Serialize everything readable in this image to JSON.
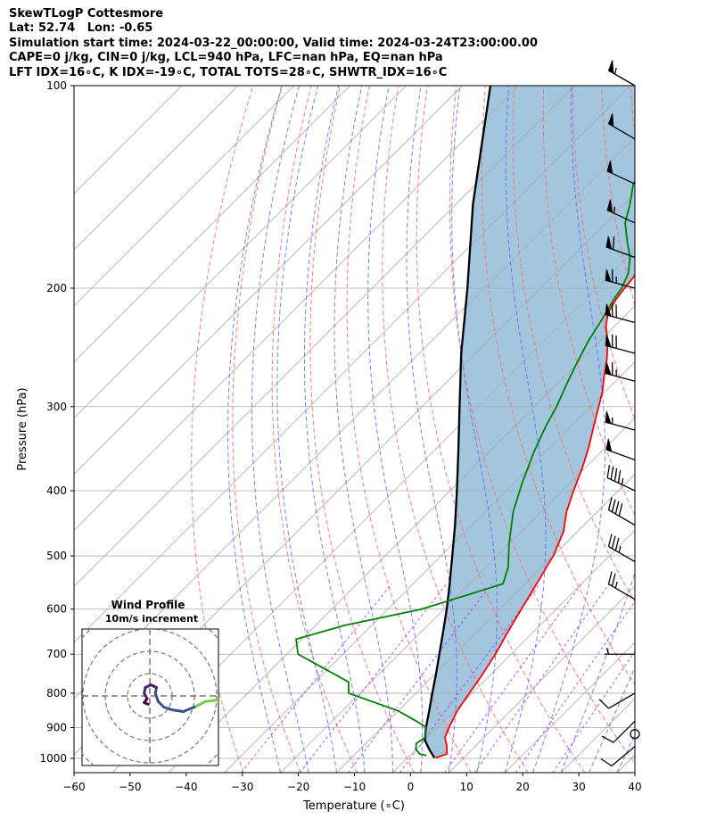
{
  "title_lines": [
    "SkewTLogP Cottesmore",
    "Lat: 52.74   Lon: -0.65",
    "Simulation start time: 2024-03-22_00:00:00, Valid time: 2024-03-24T23:00:00.00",
    "CAPE=0 j/kg, CIN=0 j/kg, LCL=940 hPa, LFC=nan hPa, EQ=nan hPa",
    "LFT IDX=16∘C, K IDX=-19∘C, TOTAL TOTS=28∘C, SHWTR_IDX=16∘C"
  ],
  "hodograph": {
    "title": "Wind Profile",
    "subtitle": "10m/s increment"
  },
  "chart_data": {
    "type": "skew-t log-p",
    "xlabel": "Temperature (∘C)",
    "ylabel": "Pressure (hPa)",
    "xlim": [
      -60,
      40
    ],
    "ylim": [
      1050,
      100
    ],
    "x_ticks": [
      "−60",
      "−50",
      "−40",
      "−30",
      "−20",
      "−10",
      "0",
      "10",
      "20",
      "30",
      "40"
    ],
    "y_ticks": [
      "100",
      "200",
      "300",
      "400",
      "500",
      "600",
      "700",
      "800",
      "900",
      "1000"
    ],
    "grid": true,
    "colors": {
      "temperature": "#ff0000",
      "dewpoint": "#008000",
      "parcel": "#000000",
      "cape_fill": "#a3c6df",
      "dry_adiabat": "#ff6b6b",
      "moist_adiabat": "#5a6bff",
      "mixing_ratio": "#9b30ff",
      "isotherm": "#aaaaaa"
    },
    "series": [
      {
        "key": "temperature",
        "points": [
          [
            998,
            5.0
          ],
          [
            985,
            6.3
          ],
          [
            960,
            5.0
          ],
          [
            930,
            3.0
          ],
          [
            900,
            2.0
          ],
          [
            850,
            0.5
          ],
          [
            800,
            -0.5
          ],
          [
            750,
            -1.5
          ],
          [
            700,
            -2.8
          ],
          [
            650,
            -4.5
          ],
          [
            600,
            -6.2
          ],
          [
            550,
            -8.0
          ],
          [
            500,
            -10.0
          ],
          [
            460,
            -12.5
          ],
          [
            430,
            -15.5
          ],
          [
            400,
            -18.0
          ],
          [
            370,
            -20.5
          ],
          [
            345,
            -23.0
          ],
          [
            320,
            -26.0
          ],
          [
            300,
            -28.5
          ],
          [
            285,
            -30.5
          ],
          [
            270,
            -33.0
          ],
          [
            255,
            -35.5
          ],
          [
            240,
            -38.5
          ],
          [
            228,
            -41.5
          ],
          [
            218,
            -43.5
          ],
          [
            208,
            -44.5
          ],
          [
            200,
            -45.0
          ],
          [
            190,
            -45.5
          ],
          [
            182,
            -46.0
          ],
          [
            172,
            -45.5
          ],
          [
            162,
            -44.5
          ],
          [
            150,
            -43.0
          ],
          [
            140,
            -43.0
          ],
          [
            130,
            -45.0
          ],
          [
            120,
            -47.5
          ],
          [
            110,
            -51.0
          ],
          [
            100,
            -55.0
          ]
        ]
      },
      {
        "key": "dewpoint",
        "points": [
          [
            990,
            3.0
          ],
          [
            985,
            1.5
          ],
          [
            970,
            0.0
          ],
          [
            950,
            -1.0
          ],
          [
            930,
            -0.5
          ],
          [
            900,
            -2.0
          ],
          [
            880,
            -5.0
          ],
          [
            850,
            -10.0
          ],
          [
            800,
            -22.0
          ],
          [
            770,
            -24.0
          ],
          [
            700,
            -38.0
          ],
          [
            665,
            -41.0
          ],
          [
            635,
            -35.0
          ],
          [
            600,
            -24.0
          ],
          [
            570,
            -18.0
          ],
          [
            550,
            -14.0
          ],
          [
            520,
            -16.0
          ],
          [
            480,
            -20.0
          ],
          [
            430,
            -25.0
          ],
          [
            390,
            -28.5
          ],
          [
            350,
            -32.0
          ],
          [
            320,
            -34.5
          ],
          [
            300,
            -36.0
          ],
          [
            280,
            -38.0
          ],
          [
            260,
            -40.0
          ],
          [
            240,
            -42.0
          ],
          [
            222,
            -43.5
          ],
          [
            207,
            -45.0
          ],
          [
            200,
            -45.5
          ],
          [
            190,
            -47.0
          ],
          [
            180,
            -49.5
          ],
          [
            170,
            -53.0
          ],
          [
            160,
            -56.5
          ],
          [
            150,
            -59.0
          ],
          [
            140,
            -62.0
          ],
          [
            130,
            -63.5
          ],
          [
            120,
            -63.0
          ],
          [
            110,
            -62.0
          ],
          [
            100,
            -60.0
          ]
        ]
      },
      {
        "key": "parcel",
        "points": [
          [
            998,
            4.8
          ],
          [
            970,
            2.4
          ],
          [
            940,
            0.0
          ],
          [
            900,
            -2.1
          ],
          [
            850,
            -4.5
          ],
          [
            800,
            -7.1
          ],
          [
            750,
            -9.8
          ],
          [
            700,
            -12.8
          ],
          [
            650,
            -16.0
          ],
          [
            600,
            -19.5
          ],
          [
            550,
            -23.5
          ],
          [
            500,
            -28.0
          ],
          [
            450,
            -33.0
          ],
          [
            400,
            -38.8
          ],
          [
            350,
            -45.5
          ],
          [
            300,
            -53.3
          ],
          [
            250,
            -62.5
          ],
          [
            200,
            -73.0
          ],
          [
            150,
            -87.0
          ],
          [
            100,
            -105.0
          ]
        ]
      }
    ],
    "wind_barbs": [
      {
        "p": 100,
        "dir": 300,
        "speed": 55
      },
      {
        "p": 120,
        "dir": 300,
        "speed": 50
      },
      {
        "p": 140,
        "dir": 295,
        "speed": 50
      },
      {
        "p": 160,
        "dir": 295,
        "speed": 55
      },
      {
        "p": 180,
        "dir": 290,
        "speed": 60
      },
      {
        "p": 200,
        "dir": 285,
        "speed": 65
      },
      {
        "p": 225,
        "dir": 285,
        "speed": 70
      },
      {
        "p": 250,
        "dir": 285,
        "speed": 70
      },
      {
        "p": 275,
        "dir": 285,
        "speed": 65
      },
      {
        "p": 325,
        "dir": 285,
        "speed": 55
      },
      {
        "p": 360,
        "dir": 290,
        "speed": 50
      },
      {
        "p": 400,
        "dir": 295,
        "speed": 45
      },
      {
        "p": 450,
        "dir": 300,
        "speed": 40
      },
      {
        "p": 510,
        "dir": 300,
        "speed": 35
      },
      {
        "p": 580,
        "dir": 300,
        "speed": 25
      },
      {
        "p": 700,
        "dir": 270,
        "speed": 5
      },
      {
        "p": 800,
        "dir": 240,
        "speed": 10
      },
      {
        "p": 880,
        "dir": 225,
        "speed": 10
      },
      {
        "p": 920,
        "dir": 0,
        "speed": 0
      },
      {
        "p": 960,
        "dir": 230,
        "speed": 10
      }
    ],
    "hodograph_trace": [
      {
        "u": 18,
        "v": -1,
        "c": "#7bd13a"
      },
      {
        "u": 14,
        "v": -0.5,
        "c": "#7bd13a"
      },
      {
        "u": 10,
        "v": -1,
        "c": "#6ccd5a"
      },
      {
        "u": 8,
        "v": -2,
        "c": "#3b518a"
      },
      {
        "u": 6,
        "v": -2.8,
        "c": "#3b518a"
      },
      {
        "u": 4,
        "v": -2.5,
        "c": "#3b518a"
      },
      {
        "u": 2.5,
        "v": -2,
        "c": "#3b518a"
      },
      {
        "u": 1.5,
        "v": -1,
        "c": "#3b518a"
      },
      {
        "u": 1,
        "v": 0.5,
        "c": "#3b518a"
      },
      {
        "u": 1.2,
        "v": 1.5,
        "c": "#482173"
      },
      {
        "u": 0.2,
        "v": 2,
        "c": "#482173"
      },
      {
        "u": -0.8,
        "v": 1.5,
        "c": "#482173"
      },
      {
        "u": -1,
        "v": 0.5,
        "c": "#482173"
      },
      {
        "u": -0.5,
        "v": -0.5,
        "c": "#440154"
      },
      {
        "u": -1,
        "v": -1.2,
        "c": "#440154"
      },
      {
        "u": -0.3,
        "v": -1.5,
        "c": "#440154"
      }
    ]
  }
}
